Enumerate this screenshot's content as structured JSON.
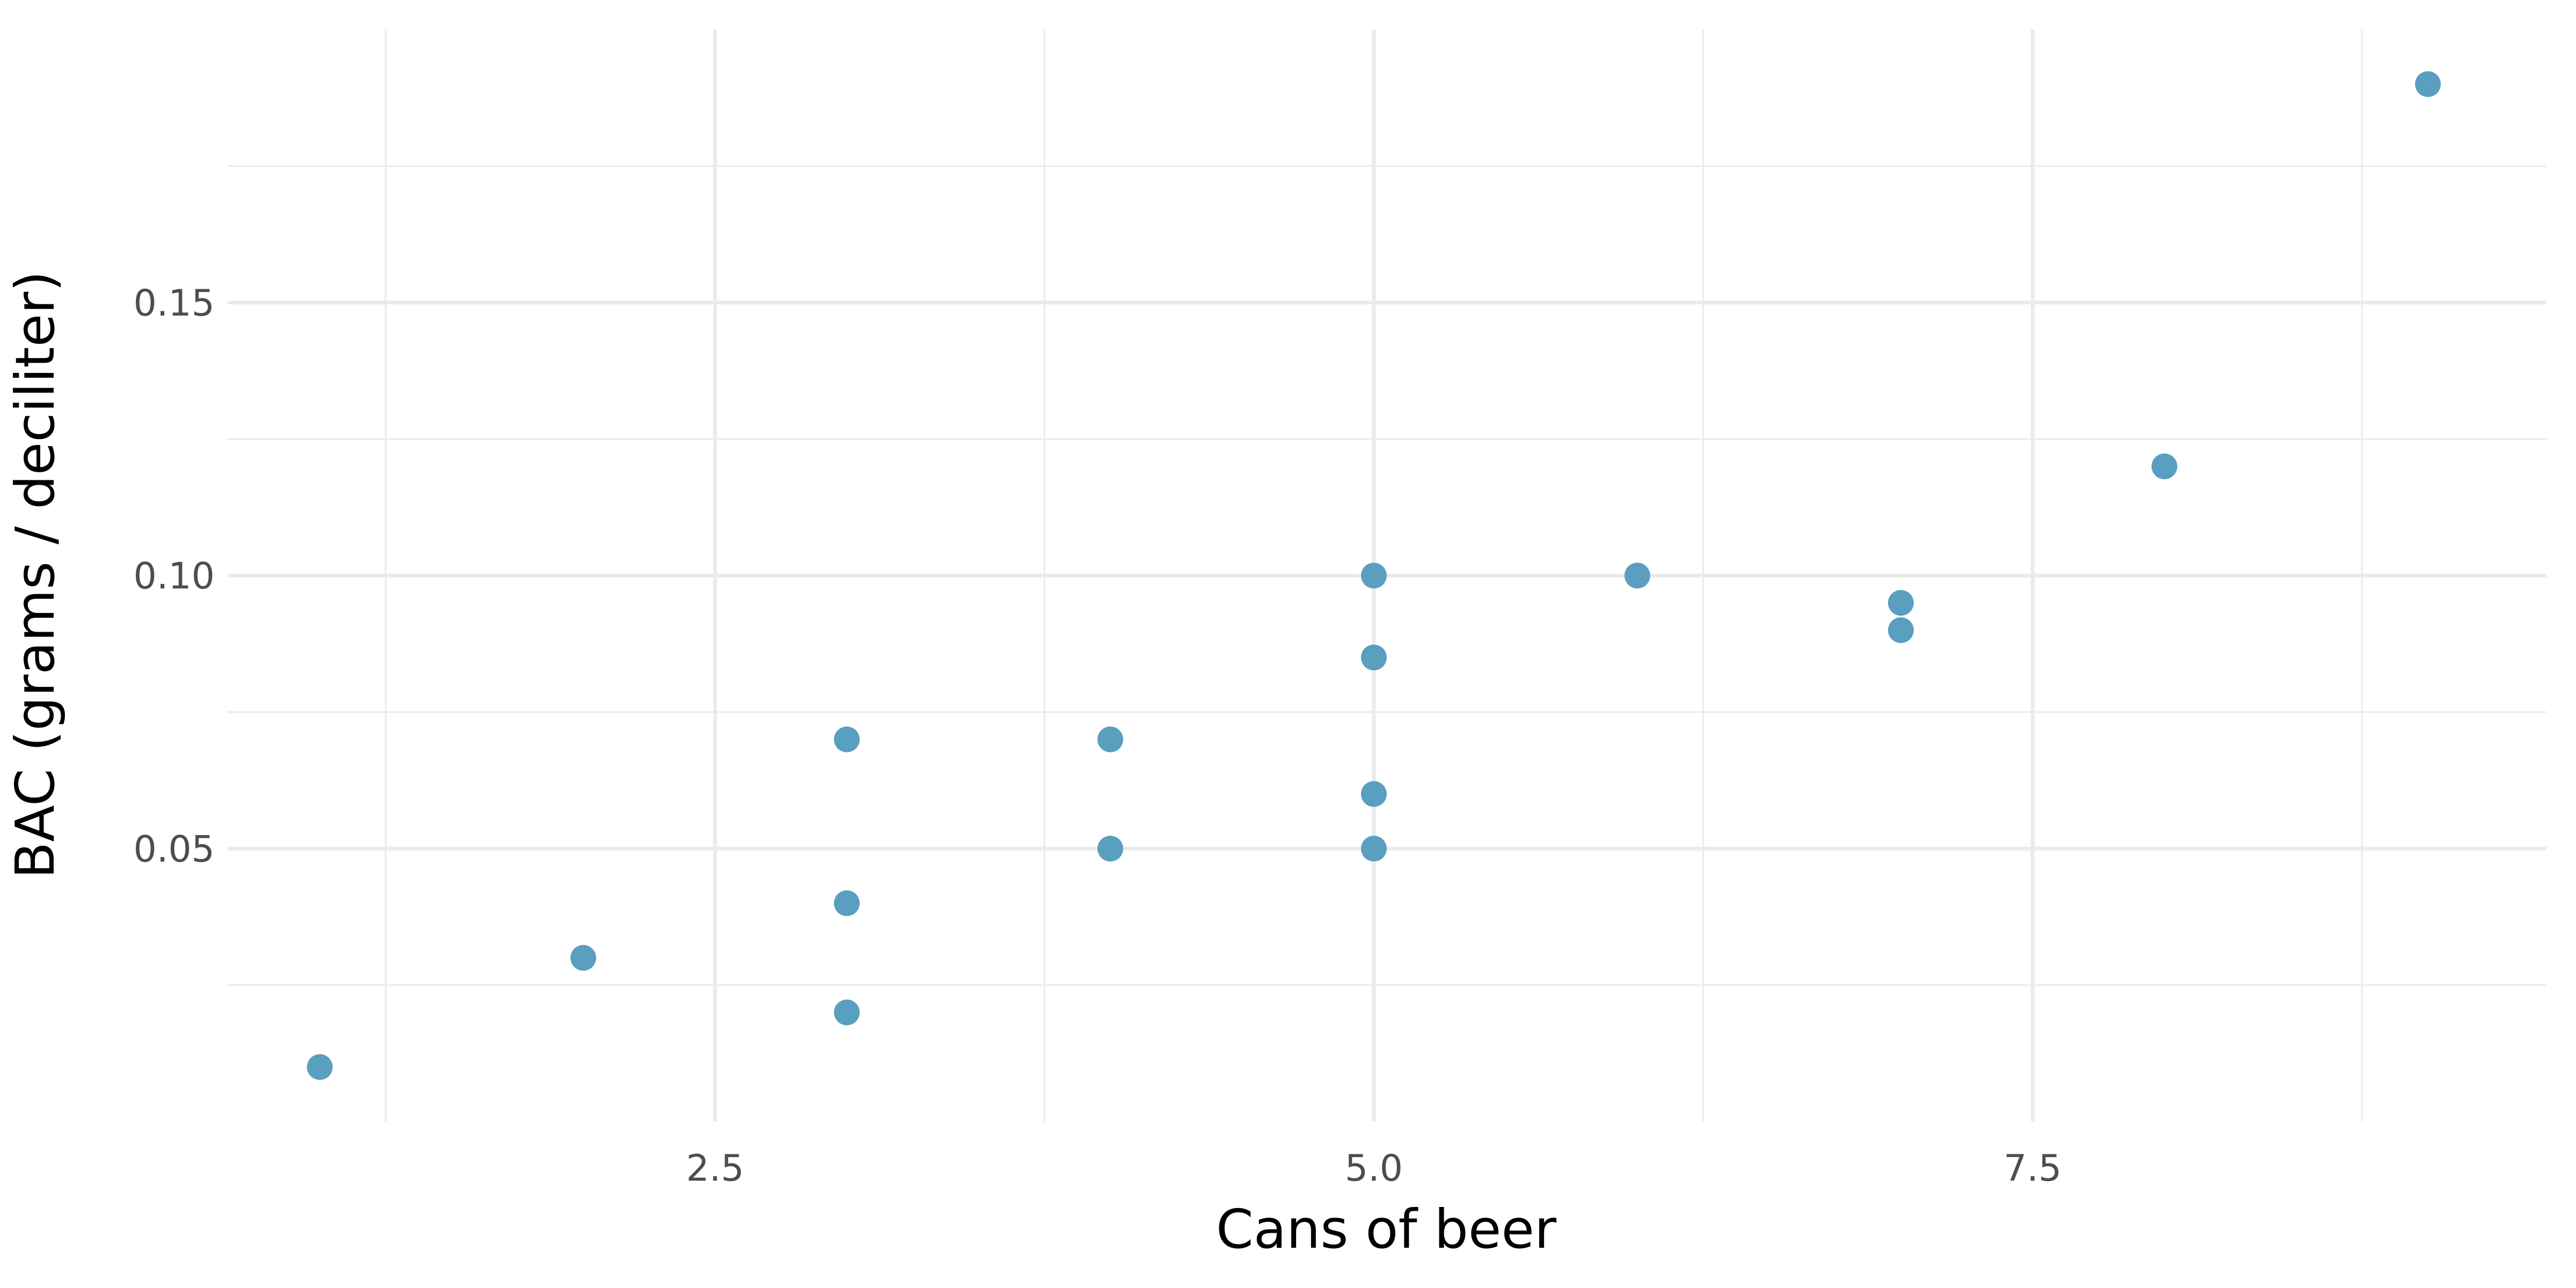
{
  "chart_data": {
    "type": "scatter",
    "xlabel": "Cans of beer",
    "ylabel": "BAC (grams / deciliter)",
    "xlim": [
      0.65,
      9.45
    ],
    "ylim": [
      0.0,
      0.2
    ],
    "x_ticks": [
      2.5,
      5.0,
      7.5
    ],
    "x_tick_labels": [
      "2.5",
      "5.0",
      "7.5"
    ],
    "x_minor_ticks": [
      1.25,
      3.75,
      6.25,
      8.75
    ],
    "y_ticks": [
      0.05,
      0.1,
      0.15
    ],
    "y_tick_labels": [
      "0.05",
      "0.10",
      "0.15"
    ],
    "y_minor_ticks": [
      0.025,
      0.075,
      0.125,
      0.175
    ],
    "grid": true,
    "point_color": "#5a9ec0",
    "points": [
      {
        "x": 1,
        "y": 0.01
      },
      {
        "x": 2,
        "y": 0.03
      },
      {
        "x": 3,
        "y": 0.02
      },
      {
        "x": 3,
        "y": 0.04
      },
      {
        "x": 3,
        "y": 0.07
      },
      {
        "x": 4,
        "y": 0.05
      },
      {
        "x": 4,
        "y": 0.07
      },
      {
        "x": 5,
        "y": 0.05
      },
      {
        "x": 5,
        "y": 0.06
      },
      {
        "x": 5,
        "y": 0.085
      },
      {
        "x": 5,
        "y": 0.1
      },
      {
        "x": 6,
        "y": 0.1
      },
      {
        "x": 7,
        "y": 0.09
      },
      {
        "x": 7,
        "y": 0.095
      },
      {
        "x": 8,
        "y": 0.12
      },
      {
        "x": 9,
        "y": 0.19
      }
    ]
  }
}
